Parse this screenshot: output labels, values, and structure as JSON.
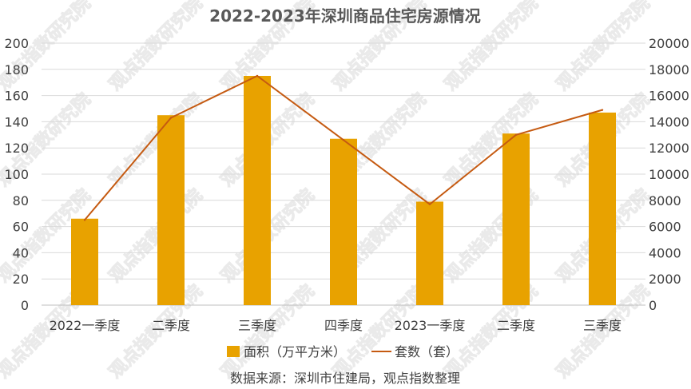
{
  "chart_data": {
    "type": "bar",
    "title": "2022-2023年深圳商品住宅房源情况",
    "categories": [
      "2022一季度",
      "二季度",
      "三季度",
      "四季度",
      "2023一季度",
      "二季度",
      "三季度"
    ],
    "series": [
      {
        "name": "面积（万平方米）",
        "type": "bar",
        "axis": "left",
        "color": "#E8A200",
        "values": [
          66,
          145,
          175,
          127,
          79,
          131,
          147
        ]
      },
      {
        "name": "套数（套）",
        "type": "line",
        "axis": "right",
        "color": "#C55A11",
        "values": [
          6500,
          14300,
          17500,
          12600,
          7700,
          13000,
          14900
        ]
      }
    ],
    "y_left": {
      "min": 0,
      "max": 200,
      "ticks": [
        "0",
        "20",
        "40",
        "60",
        "80",
        "100",
        "120",
        "140",
        "160",
        "180",
        "200"
      ]
    },
    "y_right": {
      "min": 0,
      "max": 20000,
      "ticks": [
        "0",
        "2000",
        "4000",
        "6000",
        "8000",
        "10000",
        "12000",
        "14000",
        "16000",
        "18000",
        "20000"
      ]
    },
    "grid": true,
    "legend_position": "bottom",
    "source": "数据来源：深圳市住建局，观点指数整理",
    "watermark": "观点指数研究院"
  }
}
